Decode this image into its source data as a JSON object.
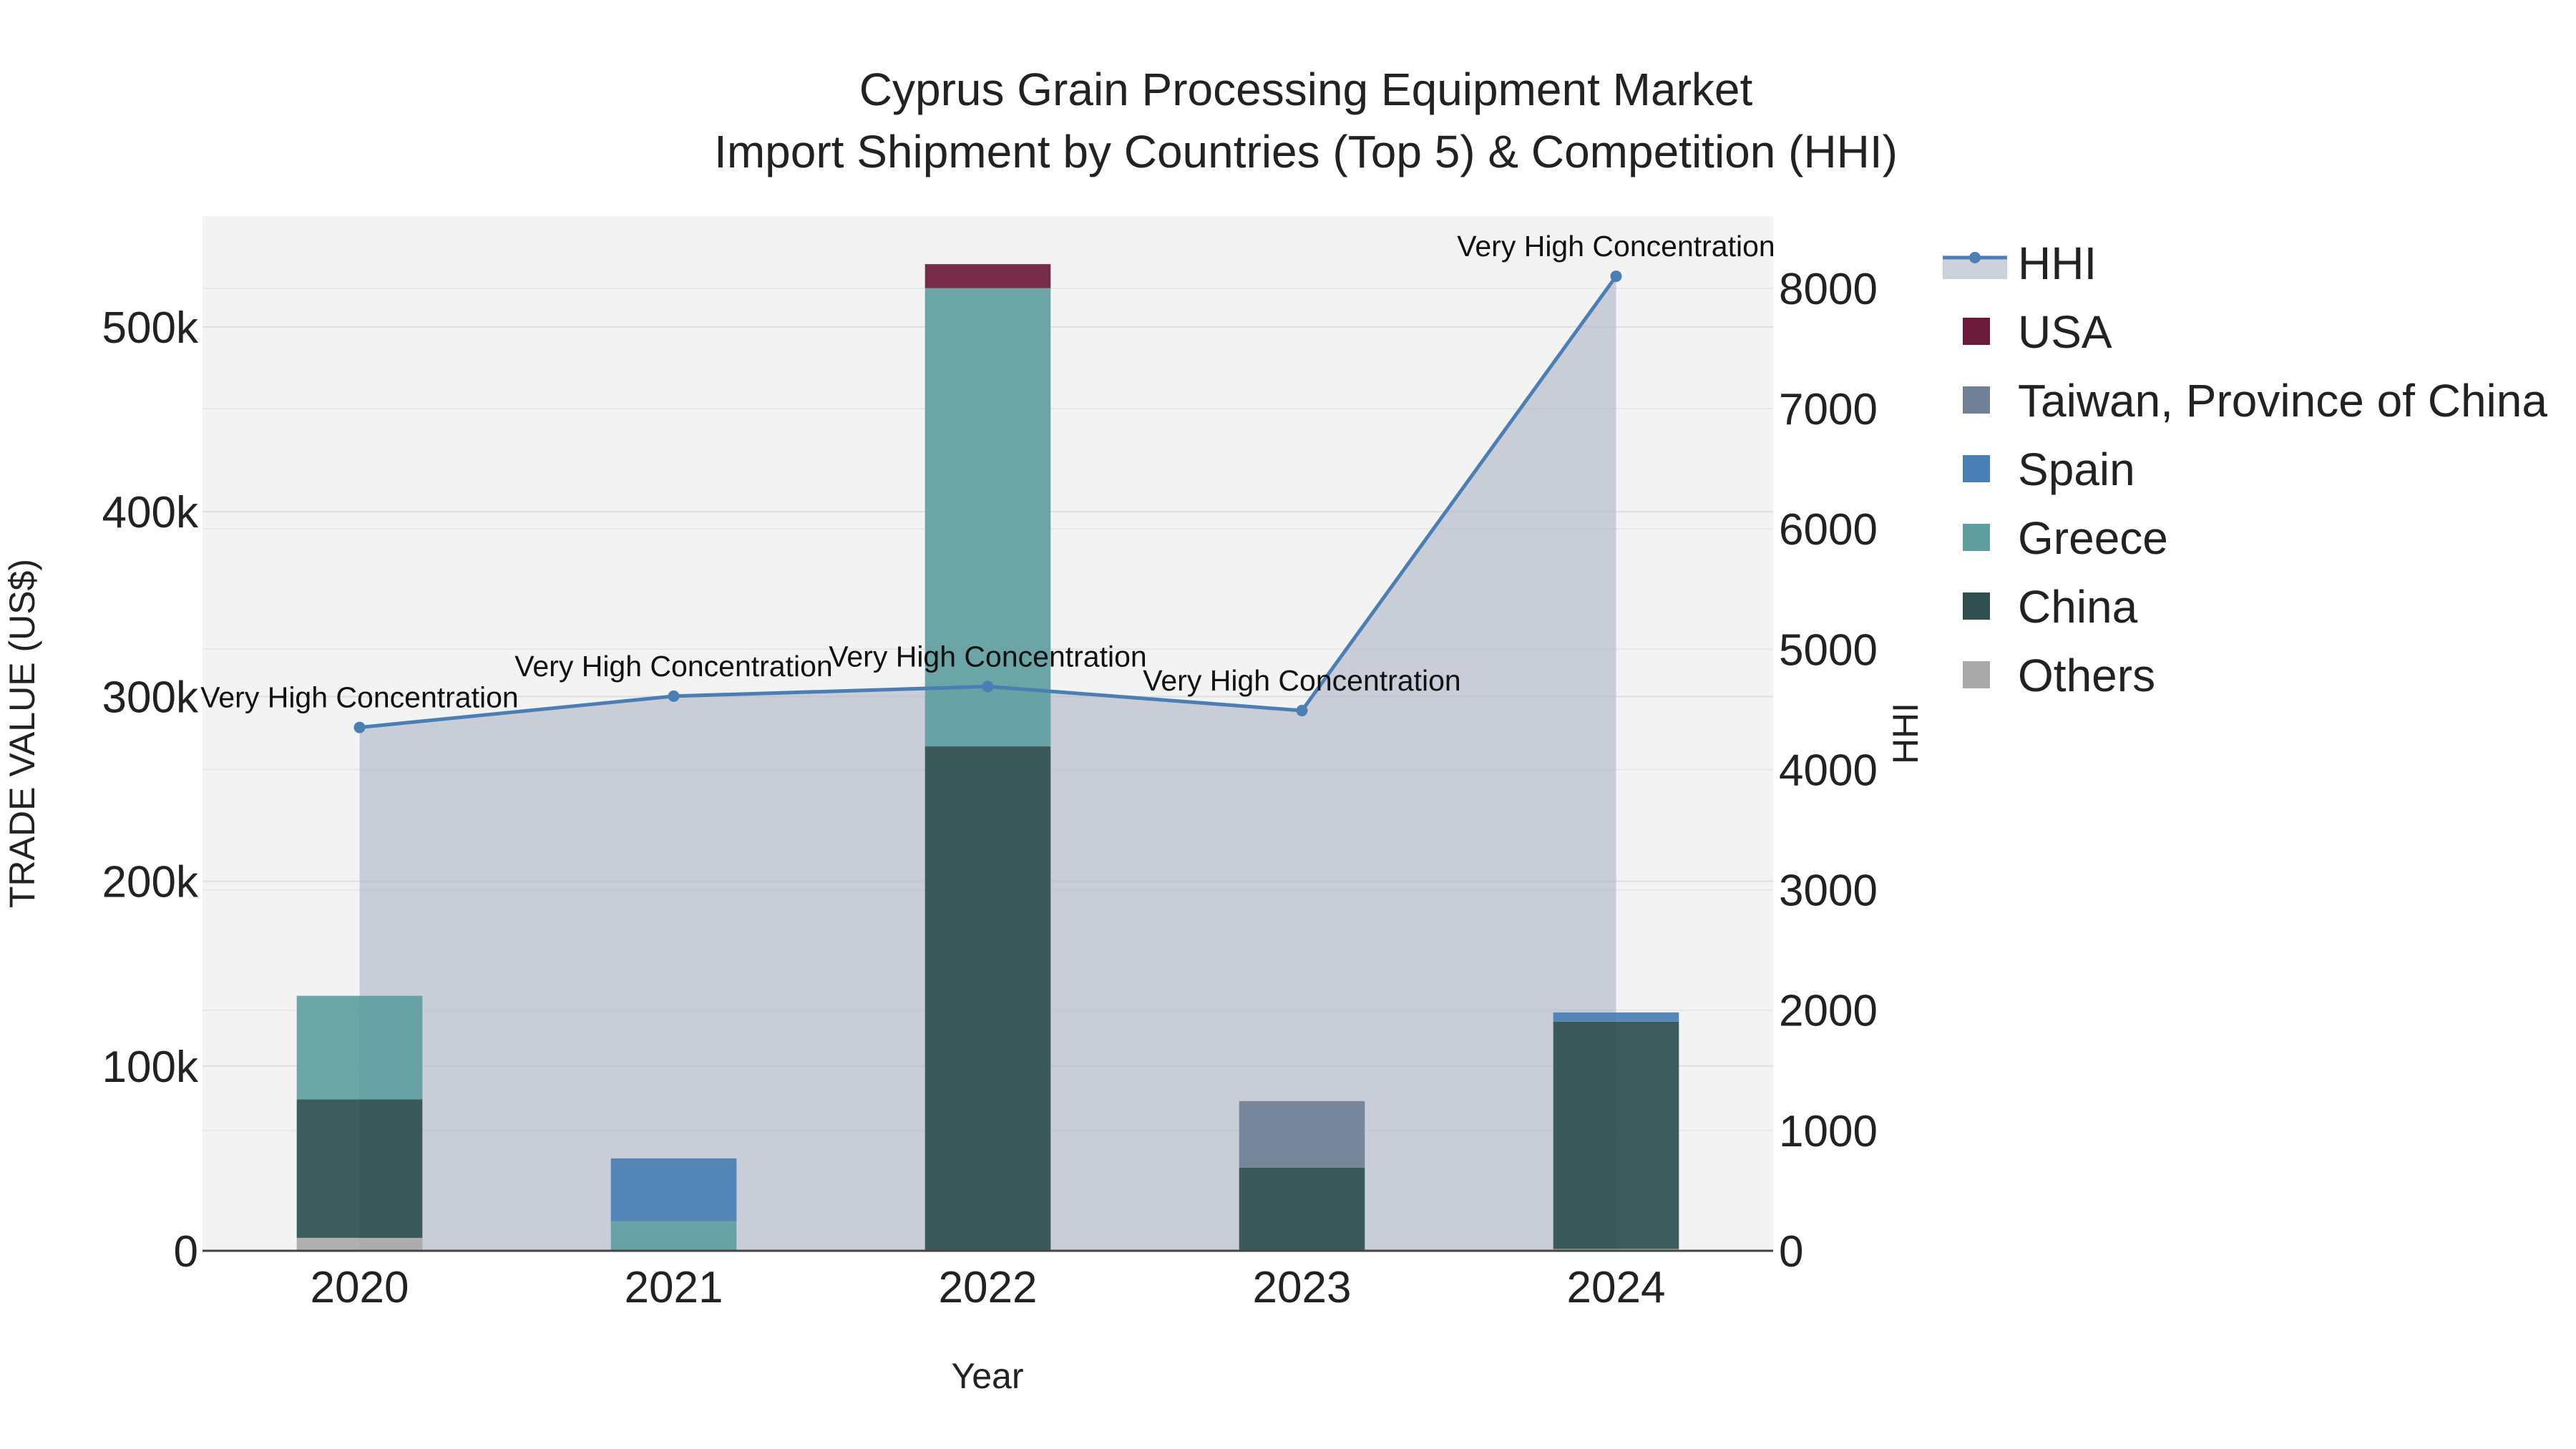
{
  "chart_data": {
    "type": "bar",
    "title": "Cyprus Grain Processing Equipment Market",
    "subtitle": "Import Shipment by Countries (Top 5) & Competition (HHI)",
    "xlabel": "Year",
    "ylabel": "TRADE VALUE (US$)",
    "y2label": "HHI",
    "categories": [
      "2020",
      "2021",
      "2022",
      "2023",
      "2024"
    ],
    "ylim": [
      0,
      560000
    ],
    "y2lim": [
      0,
      8600
    ],
    "yticks": [
      0,
      100000,
      200000,
      300000,
      400000,
      500000
    ],
    "ytick_labels": [
      "0",
      "100k",
      "200k",
      "300k",
      "400k",
      "500k"
    ],
    "y2ticks": [
      0,
      1000,
      2000,
      3000,
      4000,
      5000,
      6000,
      7000,
      8000
    ],
    "y2tick_labels": [
      "0",
      "1000",
      "2000",
      "3000",
      "4000",
      "5000",
      "6000",
      "7000",
      "8000"
    ],
    "stack_order": [
      "Others",
      "China",
      "Greece",
      "Spain",
      "Taiwan, Province of China",
      "USA"
    ],
    "series": [
      {
        "name": "USA",
        "color": "#6b1a3a",
        "values": [
          0,
          0,
          13000,
          0,
          0
        ]
      },
      {
        "name": "Taiwan, Province of China",
        "color": "#718096",
        "values": [
          0,
          0,
          0,
          36000,
          0
        ]
      },
      {
        "name": "Spain",
        "color": "#4a7fb5",
        "values": [
          0,
          34000,
          0,
          0,
          5000
        ]
      },
      {
        "name": "Greece",
        "color": "#5f9ea0",
        "values": [
          56000,
          16000,
          248000,
          0,
          0
        ]
      },
      {
        "name": "China",
        "color": "#2f4f4f",
        "values": [
          75000,
          0,
          273000,
          45000,
          123000
        ]
      },
      {
        "name": "Others",
        "color": "#a9a9a9",
        "values": [
          7000,
          0,
          0,
          0,
          1000
        ]
      }
    ],
    "hhi": {
      "name": "HHI",
      "line_color": "#4a7fb5",
      "fill_color": "#b0b8c8",
      "values": [
        4350,
        4610,
        4690,
        4490,
        8100
      ],
      "annotations": [
        "Very High Concentration",
        "Very High Concentration",
        "Very High Concentration",
        "Very High Concentration",
        "Very High Concentration"
      ]
    },
    "legend_position": "right",
    "grid": true
  }
}
